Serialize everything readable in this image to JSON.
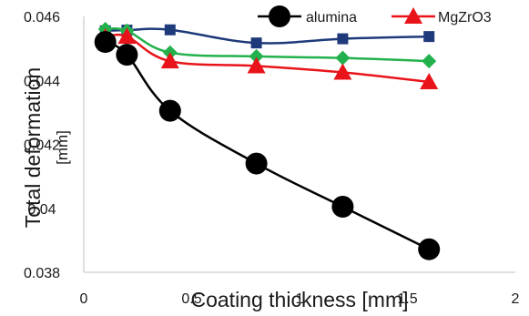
{
  "chart_data": {
    "type": "line",
    "title": "",
    "xlabel": "Coating thickness [mm]",
    "ylabel_lines": [
      "Total deformation",
      "[mm]"
    ],
    "xlim": [
      0,
      2
    ],
    "ylim": [
      0.038,
      0.046
    ],
    "x_ticks": [
      {
        "value": 0,
        "label": "0"
      },
      {
        "value": 0.5,
        "label": "0.5"
      },
      {
        "value": 1,
        "label": "1"
      },
      {
        "value": 1.5,
        "label": "1.5"
      },
      {
        "value": 2,
        "label": "2"
      }
    ],
    "y_ticks": [
      {
        "value": 0.038,
        "label": "0.038"
      },
      {
        "value": 0.04,
        "label": "0.04"
      },
      {
        "value": 0.042,
        "label": "0.042"
      },
      {
        "value": 0.044,
        "label": "0.044"
      },
      {
        "value": 0.046,
        "label": "0.046"
      }
    ],
    "grid": false,
    "legend_placement": "top-right",
    "x": [
      0.1,
      0.2,
      0.4,
      0.8,
      1.2,
      1.6
    ],
    "series": [
      {
        "name": "",
        "color": "#1f3a7a",
        "marker": "square",
        "values": [
          0.04555,
          0.04557,
          0.04558,
          0.04517,
          0.0453,
          0.04537
        ]
      },
      {
        "name": "",
        "color": "#22b14c",
        "marker": "diamond",
        "values": [
          0.0456,
          0.04555,
          0.04487,
          0.04475,
          0.0447,
          0.0446
        ]
      },
      {
        "name": "MgZrO3",
        "color": "#e8141a",
        "marker": "triangle",
        "values": [
          0.04535,
          0.04537,
          0.0446,
          0.04445,
          0.04425,
          0.04395
        ]
      },
      {
        "name": "alumina",
        "color": "#000000",
        "marker": "circle",
        "values": [
          0.0452,
          0.0448,
          0.04305,
          0.0414,
          0.04005,
          0.03872
        ]
      }
    ]
  }
}
